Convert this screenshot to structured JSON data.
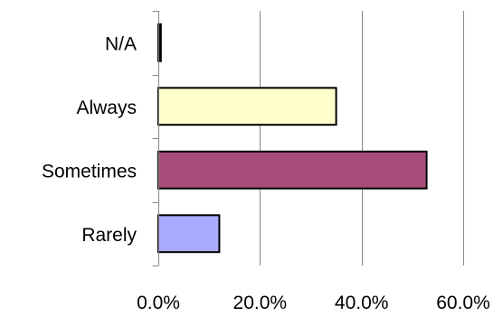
{
  "chart_data": {
    "type": "bar",
    "orientation": "horizontal",
    "categories": [
      "N/A",
      "Always",
      "Sometimes",
      "Rarely"
    ],
    "values": [
      0.5,
      35.0,
      52.8,
      12.0
    ],
    "colors": [
      "#000000",
      "#FFFFCC",
      "#A64D79",
      "#AAAAFF"
    ],
    "xlim": [
      0,
      60
    ],
    "xticks": [
      0,
      20,
      40,
      60
    ],
    "xtick_labels": [
      "0.0%",
      "20.0%",
      "40.0%",
      "60.0%"
    ],
    "grid": "vertical",
    "title": "",
    "xlabel": "",
    "ylabel": ""
  }
}
